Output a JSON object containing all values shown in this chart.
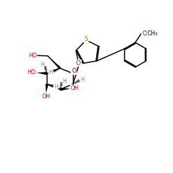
{
  "background": "#ffffff",
  "bond_color": "#000000",
  "S_color": "#808000",
  "O_color": "#cc0000",
  "H_color": "#808080",
  "lw": 1.1,
  "fig_width": 2.5,
  "fig_height": 2.5,
  "dpi": 100,
  "xlim": [
    0,
    10
  ],
  "ylim": [
    0,
    10
  ]
}
